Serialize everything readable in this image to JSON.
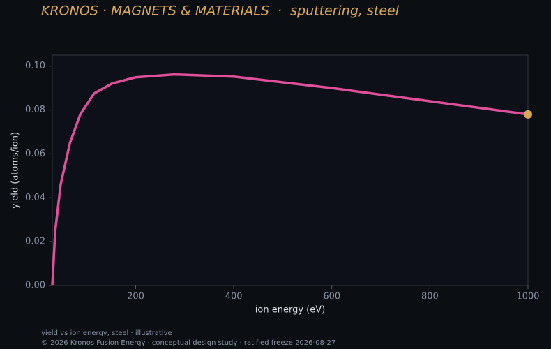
{
  "header": {
    "title": "KRONOS · MAGNETS & MATERIALS  ·  sputtering, steel"
  },
  "chart_data": {
    "type": "line",
    "x_label": "ion energy (eV)",
    "y_label": "yield (atoms/ion)",
    "x": [
      30,
      36,
      47,
      66,
      87,
      115,
      151,
      200,
      279,
      400,
      600,
      800,
      1000
    ],
    "series": [
      {
        "name": "steel",
        "color": "#e0509a",
        "values": [
          0,
          0.025,
          0.046,
          0.065,
          0.078,
          0.0875,
          0.092,
          0.0949,
          0.0962,
          0.0952,
          0.09,
          0.084,
          0.078
        ]
      }
    ],
    "end_marker_color": "#d9a95a",
    "xlim": [
      30,
      1000
    ],
    "ylim": [
      0,
      0.105
    ],
    "xticks": [
      200,
      400,
      600,
      800,
      1000
    ],
    "yticks": [
      {
        "value": 0,
        "label": "0.00"
      },
      {
        "value": 0.02,
        "label": "0.02"
      },
      {
        "value": 0.04,
        "label": "0.04"
      },
      {
        "value": 0.06,
        "label": "0.06"
      },
      {
        "value": 0.08,
        "label": "0.08"
      },
      {
        "value": 0.1,
        "label": "0.10"
      }
    ]
  },
  "footer": {
    "note": "yield vs ion energy, steel · illustrative",
    "copyright": "© 2026 Kronos Fusion Energy · conceptual design study · ratified freeze 2026-08-27"
  }
}
